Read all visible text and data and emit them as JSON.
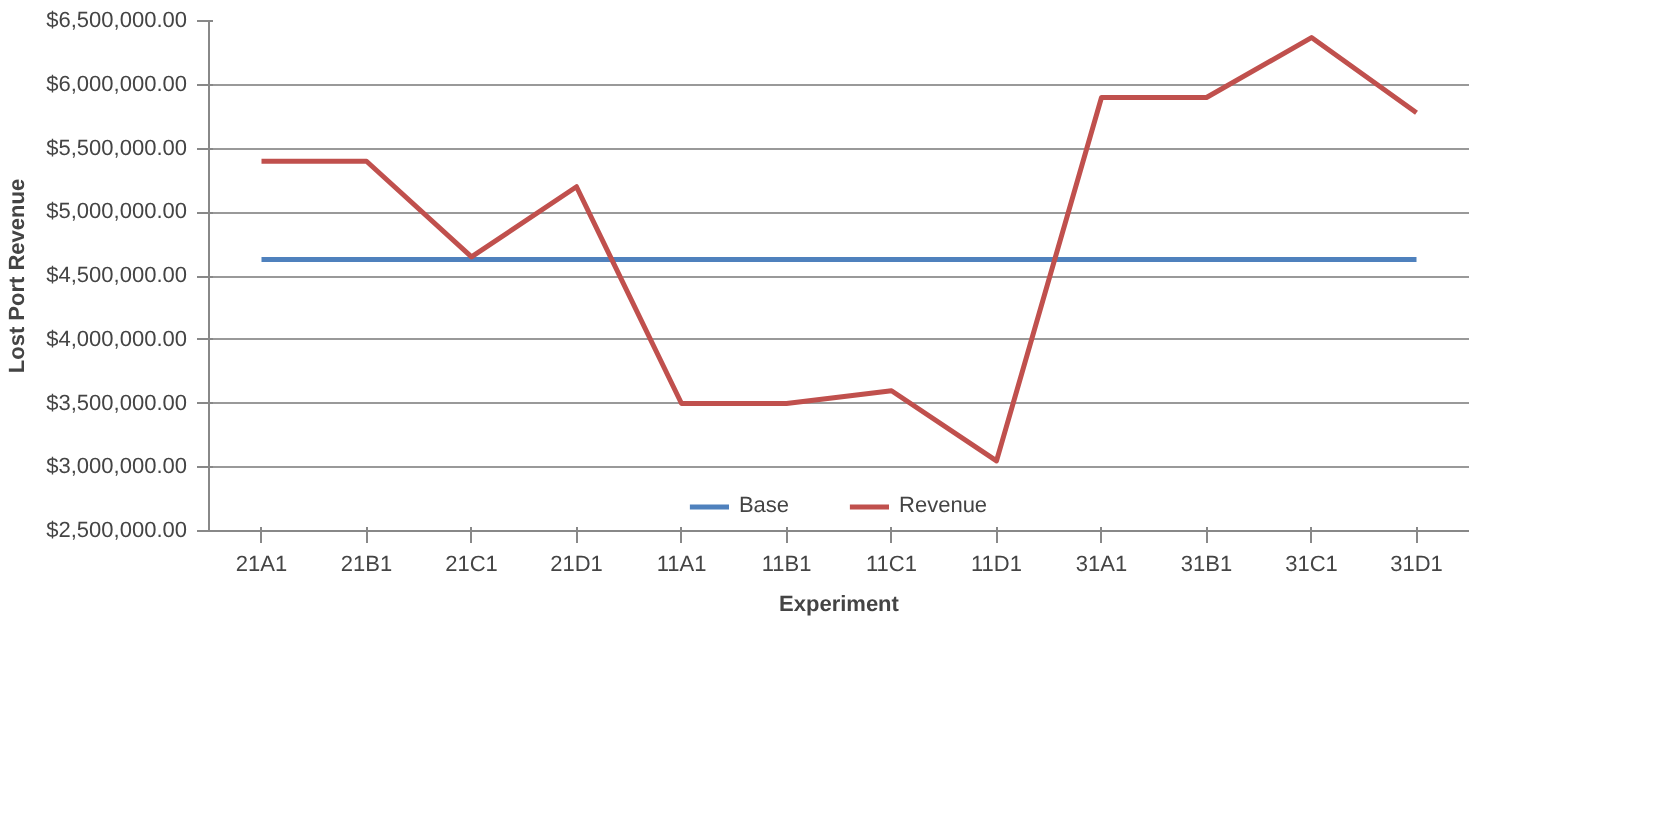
{
  "chart_data": {
    "type": "line",
    "xlabel": "Experiment",
    "ylabel": "Lost Port Revenue",
    "categories": [
      "21A1",
      "21B1",
      "21C1",
      "21D1",
      "11A1",
      "11B1",
      "11C1",
      "11D1",
      "31A1",
      "31B1",
      "31C1",
      "31D1"
    ],
    "series": [
      {
        "name": "Base",
        "color": "#4f81bd",
        "values": [
          4630000,
          4630000,
          4630000,
          4630000,
          4630000,
          4630000,
          4630000,
          4630000,
          4630000,
          4630000,
          4630000,
          4630000
        ]
      },
      {
        "name": "Revenue",
        "color": "#c0504d",
        "values": [
          5400000,
          5400000,
          4650000,
          5200000,
          3500000,
          3500000,
          3600000,
          3050000,
          5900000,
          5900000,
          6370000,
          5780000
        ]
      }
    ],
    "ylim": [
      2500000,
      6500000
    ],
    "yticks": [
      {
        "value": 2500000,
        "label": "$2,500,000.00"
      },
      {
        "value": 3000000,
        "label": "$3,000,000.00"
      },
      {
        "value": 3500000,
        "label": "$3,500,000.00"
      },
      {
        "value": 4000000,
        "label": "$4,000,000.00"
      },
      {
        "value": 4500000,
        "label": "$4,500,000.00"
      },
      {
        "value": 5000000,
        "label": "$5,000,000.00"
      },
      {
        "value": 5500000,
        "label": "$5,500,000.00"
      },
      {
        "value": 6000000,
        "label": "$6,000,000.00"
      },
      {
        "value": 6500000,
        "label": "$6,500,000.00"
      }
    ],
    "grid": "y",
    "legend": "bottom",
    "marker": "none",
    "line_style": "solid"
  }
}
